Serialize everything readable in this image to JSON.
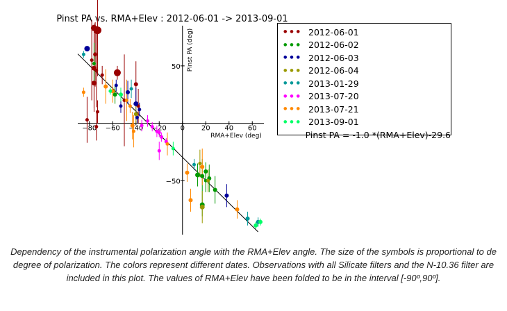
{
  "chart_data": {
    "type": "scatter",
    "title": "Pinst PA vs. RMA+Elev : 2012-06-01 -> 2013-09-01",
    "xlabel": "RMA+Elev (deg)",
    "ylabel": "Pinst PA (deg)",
    "xlim": [
      -90,
      70
    ],
    "ylim": [
      -97,
      85
    ],
    "xticks": [
      -80,
      -60,
      -40,
      -20,
      0,
      20,
      40,
      60
    ],
    "xtick_labels": [
      "−80",
      "−60",
      "−40",
      "−20",
      "0",
      "20",
      "40",
      "60"
    ],
    "yticks": [
      -50,
      0,
      50
    ],
    "ytick_labels": [
      "−50",
      "0",
      "50"
    ],
    "grid": false,
    "legend_position": "right",
    "fit": {
      "label": "Pinst PA = -1.0 *(RMA+Elev)-29.6",
      "slope": -1.0,
      "intercept": -29.6,
      "color": "#000000"
    },
    "series": [
      {
        "name": "2012-06-01",
        "color": "#990000",
        "points": [
          {
            "x": -76,
            "y": 83,
            "err": 4,
            "size": 7
          },
          {
            "x": -73,
            "y": 81,
            "err": 40,
            "size": 9
          },
          {
            "x": -75,
            "y": 60,
            "err": 28,
            "size": 4
          },
          {
            "x": -76,
            "y": 48,
            "err": 38,
            "size": 5
          },
          {
            "x": -74,
            "y": 46,
            "err": 32,
            "size": 3
          },
          {
            "x": -69,
            "y": 42,
            "err": 8,
            "size": 3
          },
          {
            "x": -76,
            "y": 35,
            "err": 22,
            "size": 5
          },
          {
            "x": -73,
            "y": 10,
            "err": 10,
            "size": 3
          },
          {
            "x": -74,
            "y": -3,
            "err": 12,
            "size": 3
          },
          {
            "x": -56,
            "y": 44,
            "err": 6,
            "size": 8
          },
          {
            "x": -40,
            "y": 34,
            "err": 20,
            "size": 4
          },
          {
            "x": -38,
            "y": 15,
            "err": 15,
            "size": 3
          },
          {
            "x": -50,
            "y": 20,
            "err": 40,
            "size": 3
          },
          {
            "x": -82,
            "y": 3,
            "err": 20,
            "size": 3
          },
          {
            "x": -78,
            "y": 55,
            "err": 35,
            "size": 3
          }
        ]
      },
      {
        "name": "2012-06-02",
        "color": "#009900",
        "points": [
          {
            "x": -76,
            "y": 52,
            "err": 18,
            "size": 3
          },
          {
            "x": -58,
            "y": 25,
            "err": 8,
            "size": 4
          },
          {
            "x": 13,
            "y": -45,
            "err": 10,
            "size": 5
          },
          {
            "x": 17,
            "y": -46,
            "err": 15,
            "size": 4
          },
          {
            "x": 20,
            "y": -42,
            "err": 8,
            "size": 4
          },
          {
            "x": 23,
            "y": -48,
            "err": 12,
            "size": 4
          },
          {
            "x": 17,
            "y": -71,
            "err": 10,
            "size": 5
          },
          {
            "x": 28,
            "y": -58,
            "err": 12,
            "size": 4
          },
          {
            "x": 20,
            "y": -50,
            "err": 10,
            "size": 3
          }
        ]
      },
      {
        "name": "2012-06-03",
        "color": "#000099",
        "points": [
          {
            "x": -82,
            "y": 65,
            "err": 2,
            "size": 6
          },
          {
            "x": -57,
            "y": 33,
            "err": 5,
            "size": 3
          },
          {
            "x": -47,
            "y": 27,
            "err": 10,
            "size": 4
          },
          {
            "x": -53,
            "y": 15,
            "err": 6,
            "size": 3
          },
          {
            "x": -40,
            "y": 17,
            "err": 14,
            "size": 5
          },
          {
            "x": -37,
            "y": 12,
            "err": 6,
            "size": 3
          },
          {
            "x": -39,
            "y": 5,
            "err": 5,
            "size": 3
          },
          {
            "x": 38,
            "y": -63,
            "err": 10,
            "size": 4
          }
        ]
      },
      {
        "name": "2012-06-04",
        "color": "#999900",
        "points": [
          {
            "x": -40,
            "y": 8,
            "err": 8,
            "size": 4
          },
          {
            "x": 15,
            "y": -35,
            "err": 12,
            "size": 3
          },
          {
            "x": 17,
            "y": -73,
            "err": 14,
            "size": 5
          },
          {
            "x": 22,
            "y": -50,
            "err": 10,
            "size": 3
          }
        ]
      },
      {
        "name": "2013-01-29",
        "color": "#009999",
        "points": [
          {
            "x": -85,
            "y": 60,
            "err": 3,
            "size": 3
          },
          {
            "x": -44,
            "y": 30,
            "err": 8,
            "size": 3
          },
          {
            "x": 10,
            "y": -36,
            "err": 5,
            "size": 3
          },
          {
            "x": 56,
            "y": -83,
            "err": 6,
            "size": 4
          },
          {
            "x": 65,
            "y": -86,
            "err": 4,
            "size": 4
          }
        ]
      },
      {
        "name": "2013-07-20",
        "color": "#ff00ff",
        "points": [
          {
            "x": -30,
            "y": 2,
            "err": 5,
            "size": 3
          },
          {
            "x": -26,
            "y": -3,
            "err": 4,
            "size": 3
          },
          {
            "x": -22,
            "y": -7,
            "err": 5,
            "size": 3
          },
          {
            "x": -20,
            "y": -8,
            "err": 4,
            "size": 3
          },
          {
            "x": -18,
            "y": -12,
            "err": 4,
            "size": 3
          },
          {
            "x": -14,
            "y": -16,
            "err": 3,
            "size": 3
          },
          {
            "x": -20,
            "y": -24,
            "err": 8,
            "size": 3
          },
          {
            "x": -35,
            "y": -2,
            "err": 5,
            "size": 3
          }
        ]
      },
      {
        "name": "2013-07-21",
        "color": "#ff8800",
        "points": [
          {
            "x": -85,
            "y": 27,
            "err": 4,
            "size": 3
          },
          {
            "x": -66,
            "y": 32,
            "err": 15,
            "size": 4
          },
          {
            "x": -60,
            "y": 28,
            "err": 10,
            "size": 4
          },
          {
            "x": -48,
            "y": 20,
            "err": 18,
            "size": 3
          },
          {
            "x": -45,
            "y": 15,
            "err": 6,
            "size": 3
          },
          {
            "x": -43,
            "y": -2,
            "err": 12,
            "size": 4
          },
          {
            "x": -42,
            "y": -7,
            "err": 14,
            "size": 3
          },
          {
            "x": -13,
            "y": -18,
            "err": 10,
            "size": 3
          },
          {
            "x": 4,
            "y": -43,
            "err": 8,
            "size": 4
          },
          {
            "x": 7,
            "y": -67,
            "err": 10,
            "size": 4
          },
          {
            "x": 17,
            "y": -38,
            "err": 16,
            "size": 4
          },
          {
            "x": 47,
            "y": -75,
            "err": 8,
            "size": 4
          }
        ]
      },
      {
        "name": "2013-09-01",
        "color": "#00ff66",
        "points": [
          {
            "x": -62,
            "y": 28,
            "err": 3,
            "size": 3
          },
          {
            "x": -53,
            "y": 25,
            "err": 6,
            "size": 4
          },
          {
            "x": -8,
            "y": -22,
            "err": 6,
            "size": 3
          },
          {
            "x": 63,
            "y": -89,
            "err": 3,
            "size": 4
          },
          {
            "x": 67,
            "y": -86,
            "err": 3,
            "size": 4
          }
        ]
      }
    ]
  },
  "caption": "Dependency of the instrumental polarization angle with the RMA+Elev angle. The size of the symbols is proportional to de degree of polarization. The colors represent different dates. Observations with all Silicate filters and the N-10.36 filter are included in this plot. The values of RMA+Elev have been folded to be in the interval [-90º,90º]."
}
